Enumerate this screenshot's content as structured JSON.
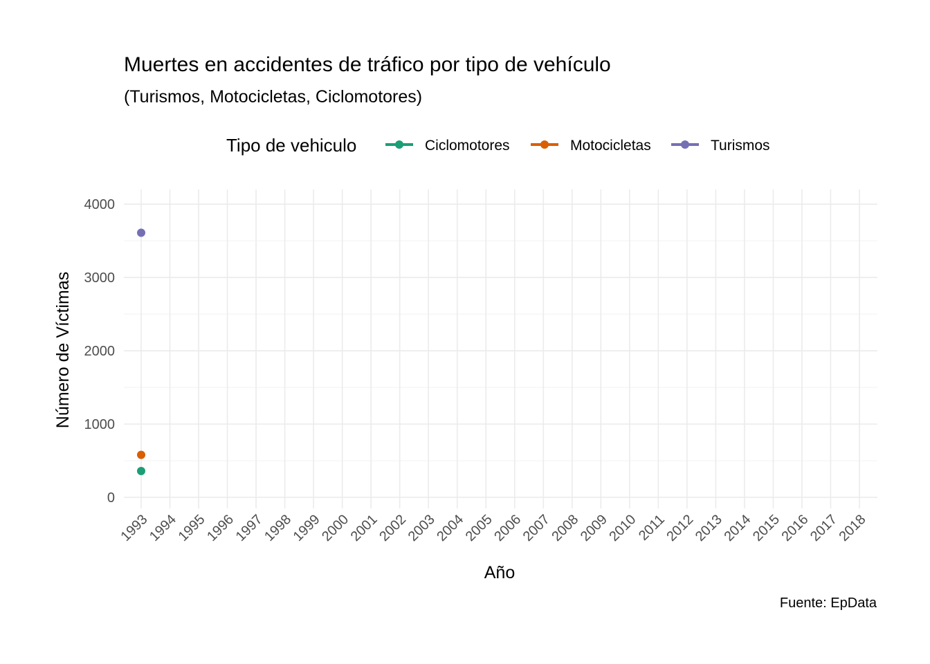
{
  "chart_data": {
    "type": "line",
    "title": "Muertes en accidentes de tráfico por tipo de vehículo",
    "subtitle": "(Turismos, Motocicletas, Ciclomotores)",
    "xlabel": "Año",
    "ylabel": "Número de Víctimas",
    "caption": "Fuente: EpData",
    "legend_title": "Tipo de vehiculo",
    "legend_position": "top",
    "grid": true,
    "x": [
      "1993",
      "1994",
      "1995",
      "1996",
      "1997",
      "1998",
      "1999",
      "2000",
      "2001",
      "2002",
      "2003",
      "2004",
      "2005",
      "2006",
      "2007",
      "2008",
      "2009",
      "2010",
      "2011",
      "2012",
      "2013",
      "2014",
      "2015",
      "2016",
      "2017",
      "2018"
    ],
    "yticks": [
      0,
      1000,
      2000,
      3000,
      4000
    ],
    "ylim": [
      -150,
      4200
    ],
    "series": [
      {
        "name": "Ciclomotores",
        "color": "#1b9e77",
        "points": [
          {
            "x": "1993",
            "y": 360
          }
        ]
      },
      {
        "name": "Motocicletas",
        "color": "#d95f02",
        "points": [
          {
            "x": "1993",
            "y": 580
          }
        ]
      },
      {
        "name": "Turismos",
        "color": "#7570b3",
        "points": [
          {
            "x": "1993",
            "y": 3610
          }
        ]
      }
    ]
  }
}
